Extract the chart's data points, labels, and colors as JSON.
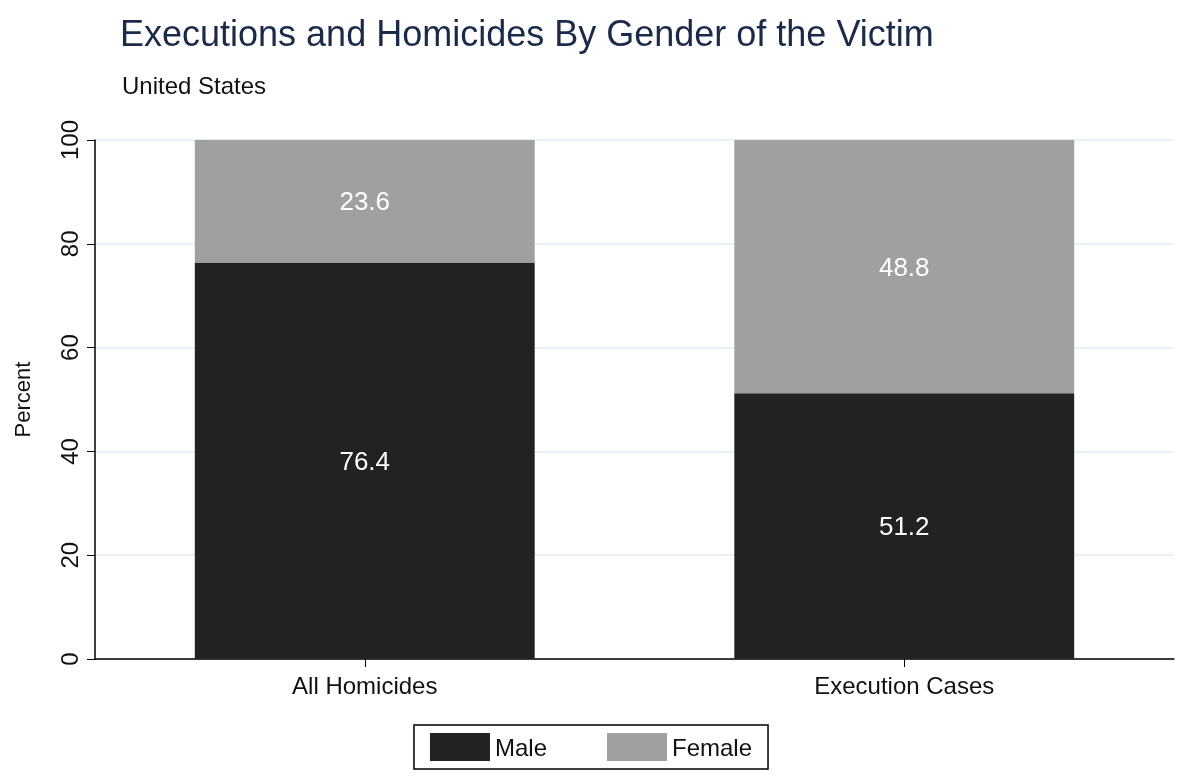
{
  "chart_data": {
    "type": "bar",
    "title": "Executions and Homicides By Gender of the Victim",
    "subtitle": "United States",
    "ylabel": "Percent",
    "categories": [
      "All Homicides",
      "Execution Cases"
    ],
    "stacked": true,
    "series": [
      {
        "name": "Male",
        "color": "#222222",
        "values": [
          76.4,
          51.2
        ]
      },
      {
        "name": "Female",
        "color": "#a0a0a0",
        "values": [
          23.6,
          48.8
        ]
      }
    ],
    "ylim": [
      0,
      100
    ],
    "yticks": [
      0,
      20,
      40,
      60,
      80,
      100
    ],
    "grid": "y",
    "legend": "bottom",
    "data_labels": true
  }
}
